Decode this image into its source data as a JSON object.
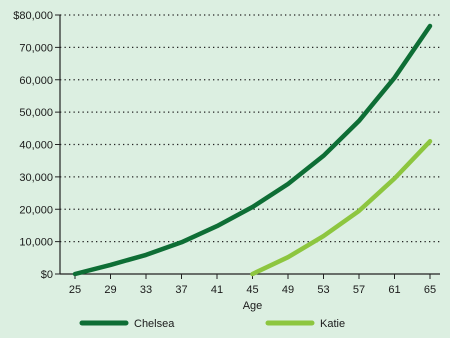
{
  "chart_data": {
    "type": "line",
    "xlabel": "Age",
    "ylabel": "",
    "x_ticks": [
      25,
      29,
      33,
      37,
      41,
      45,
      49,
      53,
      57,
      61,
      65
    ],
    "xlim": [
      25,
      65
    ],
    "ylim": [
      0,
      80000
    ],
    "y_ticks": [
      0,
      10000,
      20000,
      30000,
      40000,
      50000,
      60000,
      70000,
      80000
    ],
    "y_tick_labels": [
      "$0",
      "10,000",
      "20,000",
      "30,000",
      "40,000",
      "50,000",
      "60,000",
      "70,000",
      "$80,000"
    ],
    "grid": "horizontal-dotted",
    "legend_position": "bottom",
    "series": [
      {
        "name": "Chelsea",
        "color": "#0e6e35",
        "x": [
          25,
          29,
          33,
          37,
          41,
          45,
          49,
          53,
          57,
          61,
          65
        ],
        "y": [
          0,
          2800,
          5900,
          9800,
          14800,
          20700,
          27800,
          36500,
          47300,
          60600,
          76600
        ]
      },
      {
        "name": "Katie",
        "color": "#8dc63f",
        "x": [
          45,
          49,
          53,
          57,
          61,
          65
        ],
        "y": [
          0,
          5200,
          11700,
          19500,
          29500,
          41000
        ]
      }
    ]
  }
}
